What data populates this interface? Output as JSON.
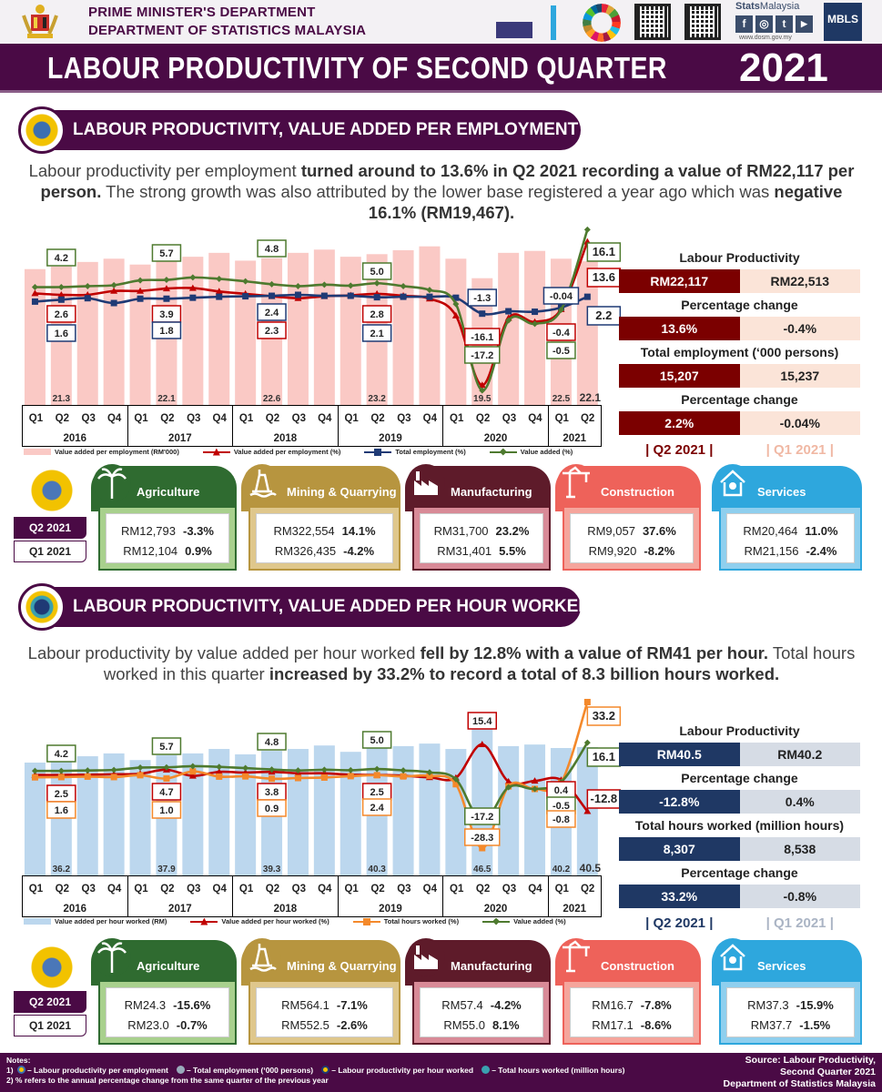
{
  "header": {
    "line1": "PRIME MINISTER'S DEPARTMENT",
    "line2": "DEPARTMENT OF STATISTICS MALAYSIA",
    "title": "LABOUR PRODUCTIVITY OF SECOND QUARTER",
    "title_year": "2021",
    "logos": [
      "coat-of-arms",
      "census-2020",
      "mystats-day",
      "sdg-wheel",
      "qr-code",
      "qr-code-facebook",
      "mbls"
    ],
    "stats_brand_bold": "Stats",
    "stats_brand": "Malaysia",
    "social": [
      "f",
      "◎",
      "t",
      "▶"
    ],
    "website": "www.dosm.gov.my",
    "mbls": "MBLS"
  },
  "colors": {
    "purple": "#4a0a45",
    "red": "#c00000",
    "blue": "#1f3a75",
    "green": "#4e7a2f",
    "orange": "#f4892b",
    "pink_bar": "#fac9c5",
    "blue_bar": "#bcd7ee",
    "q2_red": "#7b0000",
    "q1_peach": "#fbe4d8",
    "q2_navy": "#1f3864",
    "q1_grey": "#d6dce5"
  },
  "section1": {
    "title": "LABOUR PRODUCTIVITY, VALUE ADDED PER EMPLOYMENT",
    "paragraph": [
      {
        "text": "Labour productivity per employment "
      },
      {
        "text": "turned around to 13.6% in Q2 2021 recording a value of RM22,117 per person."
      },
      {
        "text": " The strong growth was also attributed by the lower base registered a year ago which was "
      },
      {
        "text": "negative 16.1% (RM19,467)."
      }
    ],
    "panel": {
      "rows": [
        {
          "label": "Labour Productivity",
          "q2": "RM22,117",
          "q1": "RM22,513"
        },
        {
          "label": "Percentage change",
          "q2": "13.6%",
          "q1": "-0.4%"
        },
        {
          "label": "Total employment (‘000 persons)",
          "q2": "15,207",
          "q1": "15,237"
        },
        {
          "label": "Percentage change",
          "q2": "2.2%",
          "q1": "-0.04%"
        }
      ],
      "q2_label": "| Q2 2021 |",
      "q1_label": "| Q1 2021 |"
    },
    "sector_legend": {
      "q2": "Q2 2021",
      "q1": "Q1 2021"
    },
    "sectors": [
      {
        "name": "Agriculture",
        "icon": "palm-tree-icon",
        "q2_value": "RM12,793",
        "q2_pct": "-3.3%",
        "q1_value": "RM12,104",
        "q1_pct": "0.9%",
        "color": "#2f6b30",
        "frame": "#a8d08d"
      },
      {
        "name": "Mining & Quarrying",
        "icon": "oil-rig-icon",
        "q2_value": "RM322,554",
        "q2_pct": "14.1%",
        "q1_value": "RM326,435",
        "q1_pct": "-4.2%",
        "color": "#b7953f",
        "frame": "#dfc78c"
      },
      {
        "name": "Manufacturing",
        "icon": "factory-icon",
        "q2_value": "RM31,700",
        "q2_pct": "23.2%",
        "q1_value": "RM31,401",
        "q1_pct": "5.5%",
        "color": "#5e1b2a",
        "frame": "#d88a97"
      },
      {
        "name": "Construction",
        "icon": "crane-icon",
        "q2_value": "RM9,057",
        "q2_pct": "37.6%",
        "q1_value": "RM9,920",
        "q1_pct": "-8.2%",
        "color": "#ee625a",
        "frame": "#f5a59c"
      },
      {
        "name": "Services",
        "icon": "services-icon",
        "q2_value": "RM20,464",
        "q2_pct": "11.0%",
        "q1_value": "RM21,156",
        "q1_pct": "-2.4%",
        "color": "#2ea7dd",
        "frame": "#8fcfee"
      }
    ]
  },
  "section2": {
    "title": "LABOUR PRODUCTIVITY, VALUE ADDED PER HOUR WORKED",
    "paragraph": [
      {
        "text": "Labour productivity by value added per hour worked "
      },
      {
        "text": "fell by 12.8% with a value of RM41 per hour."
      },
      {
        "text": " Total hours worked in this quarter "
      },
      {
        "text": "increased by 33.2% to record a total of 8.3 billion hours worked."
      }
    ],
    "panel": {
      "rows": [
        {
          "label": "Labour Productivity",
          "q2": "RM40.5",
          "q1": "RM40.2"
        },
        {
          "label": "Percentage change",
          "q2": "-12.8%",
          "q1": "0.4%"
        },
        {
          "label": "Total hours worked (million hours)",
          "q2": "8,307",
          "q1": "8,538"
        },
        {
          "label": "Percentage change",
          "q2": "33.2%",
          "q1": "-0.8%"
        }
      ],
      "q2_label": "| Q2 2021 |",
      "q1_label": "| Q1 2021 |"
    },
    "sector_legend": {
      "q2": "Q2 2021",
      "q1": "Q1 2021"
    },
    "sectors": [
      {
        "name": "Agriculture",
        "icon": "palm-tree-icon",
        "q2_value": "RM24.3",
        "q2_pct": "-15.6%",
        "q1_value": "RM23.0",
        "q1_pct": "-0.7%",
        "color": "#2f6b30",
        "frame": "#a8d08d"
      },
      {
        "name": "Mining & Quarrying",
        "icon": "oil-rig-icon",
        "q2_value": "RM564.1",
        "q2_pct": "-7.1%",
        "q1_value": "RM552.5",
        "q1_pct": "-2.6%",
        "color": "#b7953f",
        "frame": "#dfc78c"
      },
      {
        "name": "Manufacturing",
        "icon": "factory-icon",
        "q2_value": "RM57.4",
        "q2_pct": "-4.2%",
        "q1_value": "RM55.0",
        "q1_pct": "8.1%",
        "color": "#5e1b2a",
        "frame": "#d88a97"
      },
      {
        "name": "Construction",
        "icon": "crane-icon",
        "q2_value": "RM16.7",
        "q2_pct": "-7.8%",
        "q1_value": "RM17.1",
        "q1_pct": "-8.6%",
        "color": "#ee625a",
        "frame": "#f5a59c"
      },
      {
        "name": "Services",
        "icon": "services-icon",
        "q2_value": "RM37.3",
        "q2_pct": "-15.9%",
        "q1_value": "RM37.7",
        "q1_pct": "-1.5%",
        "color": "#2ea7dd",
        "frame": "#8fcfee"
      }
    ]
  },
  "chart_data": [
    {
      "type": "bar+line",
      "years": [
        {
          "label": "2016",
          "quarters": [
            "Q1",
            "Q2",
            "Q3",
            "Q4"
          ]
        },
        {
          "label": "2017",
          "quarters": [
            "Q1",
            "Q2",
            "Q3",
            "Q4"
          ]
        },
        {
          "label": "2018",
          "quarters": [
            "Q1",
            "Q2",
            "Q3",
            "Q4"
          ]
        },
        {
          "label": "2019",
          "quarters": [
            "Q1",
            "Q2",
            "Q3",
            "Q4"
          ]
        },
        {
          "label": "2020",
          "quarters": [
            "Q1",
            "Q2",
            "Q3",
            "Q4"
          ]
        },
        {
          "label": "2021",
          "quarters": [
            "Q1",
            "Q2"
          ]
        }
      ],
      "bar_series": {
        "name": "Value added per employment (RM'000)",
        "color": "#fac9c5",
        "ylim": [
          0,
          26.6
        ],
        "values": [
          20.9,
          21.3,
          22.0,
          22.5,
          21.6,
          22.1,
          22.8,
          23.4,
          22.2,
          22.6,
          23.4,
          23.9,
          22.8,
          23.2,
          23.8,
          24.4,
          22.5,
          19.5,
          23.4,
          23.7,
          22.5,
          22.1
        ]
      },
      "line_ylim": [
        -20.2,
        15.6
      ],
      "line_series": [
        {
          "name": "Value added per employment (%)",
          "color": "#c00000",
          "marker": "triangle",
          "values": [
            2.9,
            2.6,
            2.6,
            3.4,
            3.4,
            3.9,
            4.0,
            3.3,
            2.8,
            2.3,
            1.9,
            2.3,
            2.5,
            2.8,
            2.4,
            1.8,
            -1.7,
            -16.1,
            -2.2,
            -3.0,
            -0.4,
            13.6
          ]
        },
        {
          "name": "Total employment (%)",
          "color": "#1f3a75",
          "marker": "square",
          "values": [
            1.2,
            1.6,
            1.9,
            0.9,
            1.8,
            1.8,
            2.0,
            2.2,
            2.3,
            2.4,
            2.6,
            2.4,
            2.4,
            2.1,
            2.2,
            2.2,
            2.0,
            -1.3,
            -0.8,
            -0.9,
            -0.04,
            2.2
          ]
        },
        {
          "name": "Value added  (%)",
          "color": "#4e7a2f",
          "marker": "diamond",
          "values": [
            4.2,
            4.2,
            4.4,
            4.6,
            5.6,
            5.7,
            6.2,
            5.9,
            5.4,
            4.8,
            4.4,
            4.7,
            4.5,
            5.0,
            4.4,
            3.6,
            0.7,
            -17.2,
            -2.7,
            -3.4,
            -0.5,
            16.1
          ]
        }
      ],
      "bar_labels": [
        {
          "quarter": "2016 Q2",
          "text": "21.3"
        },
        {
          "quarter": "2017 Q2",
          "text": "22.1"
        },
        {
          "quarter": "2018 Q2",
          "text": "22.6"
        },
        {
          "quarter": "2019 Q2",
          "text": "23.2"
        },
        {
          "quarter": "2020 Q2",
          "text": "19.5"
        },
        {
          "quarter": "2021 Q1",
          "text": "22.5"
        },
        {
          "quarter": "2021 Q2",
          "text": "22.1"
        }
      ],
      "annotations": [
        {
          "series": 2,
          "quarter": "2016 Q2",
          "text": "4.2"
        },
        {
          "series": 2,
          "quarter": "2017 Q2",
          "text": "5.7"
        },
        {
          "series": 2,
          "quarter": "2018 Q2",
          "text": "4.8"
        },
        {
          "series": 2,
          "quarter": "2019 Q2",
          "text": "5.0"
        },
        {
          "series": 0,
          "quarter": "2016 Q2",
          "text": "2.6"
        },
        {
          "series": 1,
          "quarter": "2016 Q2",
          "text": "1.6"
        },
        {
          "series": 0,
          "quarter": "2017 Q2",
          "text": "3.9"
        },
        {
          "series": 1,
          "quarter": "2017 Q2",
          "text": "1.8"
        },
        {
          "series": 1,
          "quarter": "2018 Q2",
          "text": "2.4"
        },
        {
          "series": 0,
          "quarter": "2018 Q2",
          "text": "2.3"
        },
        {
          "series": 0,
          "quarter": "2019 Q2",
          "text": "2.8"
        },
        {
          "series": 1,
          "quarter": "2019 Q2",
          "text": "2.1"
        },
        {
          "series": 1,
          "quarter": "2020 Q2",
          "text": "-1.3"
        },
        {
          "series": 0,
          "quarter": "2020 Q2",
          "text": "-16.1"
        },
        {
          "series": 2,
          "quarter": "2020 Q2",
          "text": "-17.2"
        },
        {
          "series": 1,
          "quarter": "2021 Q1",
          "text": "-0.04"
        },
        {
          "series": 0,
          "quarter": "2021 Q1",
          "text": "-0.4"
        },
        {
          "series": 2,
          "quarter": "2021 Q1",
          "text": "-0.5"
        },
        {
          "series": 2,
          "quarter": "2021 Q2",
          "text": "16.1"
        },
        {
          "series": 0,
          "quarter": "2021 Q2",
          "text": "13.6"
        },
        {
          "series": 1,
          "quarter": "2021 Q2",
          "text": "2.2"
        }
      ]
    },
    {
      "type": "bar+line",
      "years": [
        {
          "label": "2016",
          "quarters": [
            "Q1",
            "Q2",
            "Q3",
            "Q4"
          ]
        },
        {
          "label": "2017",
          "quarters": [
            "Q1",
            "Q2",
            "Q3",
            "Q4"
          ]
        },
        {
          "label": "2018",
          "quarters": [
            "Q1",
            "Q2",
            "Q3",
            "Q4"
          ]
        },
        {
          "label": "2019",
          "quarters": [
            "Q1",
            "Q2",
            "Q3",
            "Q4"
          ]
        },
        {
          "label": "2020",
          "quarters": [
            "Q1",
            "Q2",
            "Q3",
            "Q4"
          ]
        },
        {
          "label": "2021",
          "quarters": [
            "Q1",
            "Q2"
          ]
        }
      ],
      "bar_series": {
        "name": "Value added per hour worked (RM)",
        "color": "#bcd7ee",
        "ylim": [
          0,
          58
        ],
        "values": [
          35.6,
          36.2,
          37.6,
          38.5,
          36.4,
          37.9,
          38.5,
          39.9,
          38.2,
          39.3,
          39.9,
          41.0,
          39.0,
          40.3,
          40.8,
          41.6,
          39.9,
          46.5,
          40.8,
          41.3,
          40.2,
          40.5
        ]
      },
      "line_ylim": [
        -39.8,
        37.6
      ],
      "line_series": [
        {
          "name": "Value added per hour worked (%)",
          "color": "#c00000",
          "marker": "triangle",
          "values": [
            2.5,
            2.5,
            2.6,
            2.8,
            3.0,
            4.7,
            2.1,
            3.8,
            3.5,
            3.8,
            3.2,
            3.2,
            2.6,
            2.5,
            2.2,
            1.5,
            1.3,
            15.4,
            -0.3,
            0.0,
            0.4,
            -12.8
          ]
        },
        {
          "name": "Total hours worked (%)",
          "color": "#f4892b",
          "marker": "square",
          "values": [
            1.5,
            1.6,
            1.8,
            1.6,
            2.4,
            1.0,
            4.0,
            1.8,
            1.9,
            0.9,
            1.2,
            1.4,
            2.0,
            2.4,
            1.9,
            2.1,
            -1.4,
            -28.3,
            -2.3,
            -3.4,
            -0.8,
            33.2
          ]
        },
        {
          "name": "Value added  (%)",
          "color": "#4e7a2f",
          "marker": "diamond",
          "values": [
            4.2,
            4.2,
            4.4,
            4.6,
            5.6,
            5.7,
            6.2,
            5.9,
            5.4,
            4.8,
            4.4,
            4.7,
            4.5,
            5.0,
            4.4,
            3.6,
            0.7,
            -17.2,
            -2.7,
            -3.4,
            -0.5,
            16.1
          ]
        }
      ],
      "bar_labels": [
        {
          "quarter": "2016 Q2",
          "text": "36.2"
        },
        {
          "quarter": "2017 Q2",
          "text": "37.9"
        },
        {
          "quarter": "2018 Q2",
          "text": "39.3"
        },
        {
          "quarter": "2019 Q2",
          "text": "40.3"
        },
        {
          "quarter": "2020 Q2",
          "text": "46.5"
        },
        {
          "quarter": "2021 Q1",
          "text": "40.2"
        },
        {
          "quarter": "2021 Q2",
          "text": "40.5"
        }
      ],
      "annotations": [
        {
          "series": 2,
          "quarter": "2016 Q2",
          "text": "4.2"
        },
        {
          "series": 2,
          "quarter": "2017 Q2",
          "text": "5.7"
        },
        {
          "series": 2,
          "quarter": "2018 Q2",
          "text": "4.8"
        },
        {
          "series": 2,
          "quarter": "2019 Q2",
          "text": "5.0"
        },
        {
          "series": 0,
          "quarter": "2016 Q2",
          "text": "2.5"
        },
        {
          "series": 1,
          "quarter": "2016 Q2",
          "text": "1.6"
        },
        {
          "series": 0,
          "quarter": "2017 Q2",
          "text": "4.7"
        },
        {
          "series": 1,
          "quarter": "2017 Q2",
          "text": "1.0"
        },
        {
          "series": 0,
          "quarter": "2018 Q2",
          "text": "3.8"
        },
        {
          "series": 1,
          "quarter": "2018 Q2",
          "text": "0.9"
        },
        {
          "series": 0,
          "quarter": "2019 Q2",
          "text": "2.5"
        },
        {
          "series": 1,
          "quarter": "2019 Q2",
          "text": "2.4"
        },
        {
          "series": 0,
          "quarter": "2020 Q2",
          "text": "15.4"
        },
        {
          "series": 2,
          "quarter": "2020 Q2",
          "text": "-17.2"
        },
        {
          "series": 1,
          "quarter": "2020 Q2",
          "text": "-28.3"
        },
        {
          "series": 0,
          "quarter": "2021 Q1",
          "text": "0.4"
        },
        {
          "series": 2,
          "quarter": "2021 Q1",
          "text": "-0.5"
        },
        {
          "series": 1,
          "quarter": "2021 Q1",
          "text": "-0.8"
        },
        {
          "series": 1,
          "quarter": "2021 Q2",
          "text": "33.2"
        },
        {
          "series": 2,
          "quarter": "2021 Q2",
          "text": "16.1"
        },
        {
          "series": 0,
          "quarter": "2021 Q2",
          "text": "-12.8"
        }
      ]
    }
  ],
  "footer": {
    "notes_title": "Notes:",
    "note1_prefix": "1)",
    "note1_items": [
      "– Labour productivity per employment",
      "– Total employment (‘000 persons)",
      "– Labour productivity per hour worked",
      "– Total hours worked (million hours)"
    ],
    "note2": "2) % refers to the annual percentage change from the same quarter of the previous year",
    "source": [
      "Source: Labour Productivity,",
      "Second Quarter 2021",
      "Department of Statistics Malaysia"
    ]
  }
}
